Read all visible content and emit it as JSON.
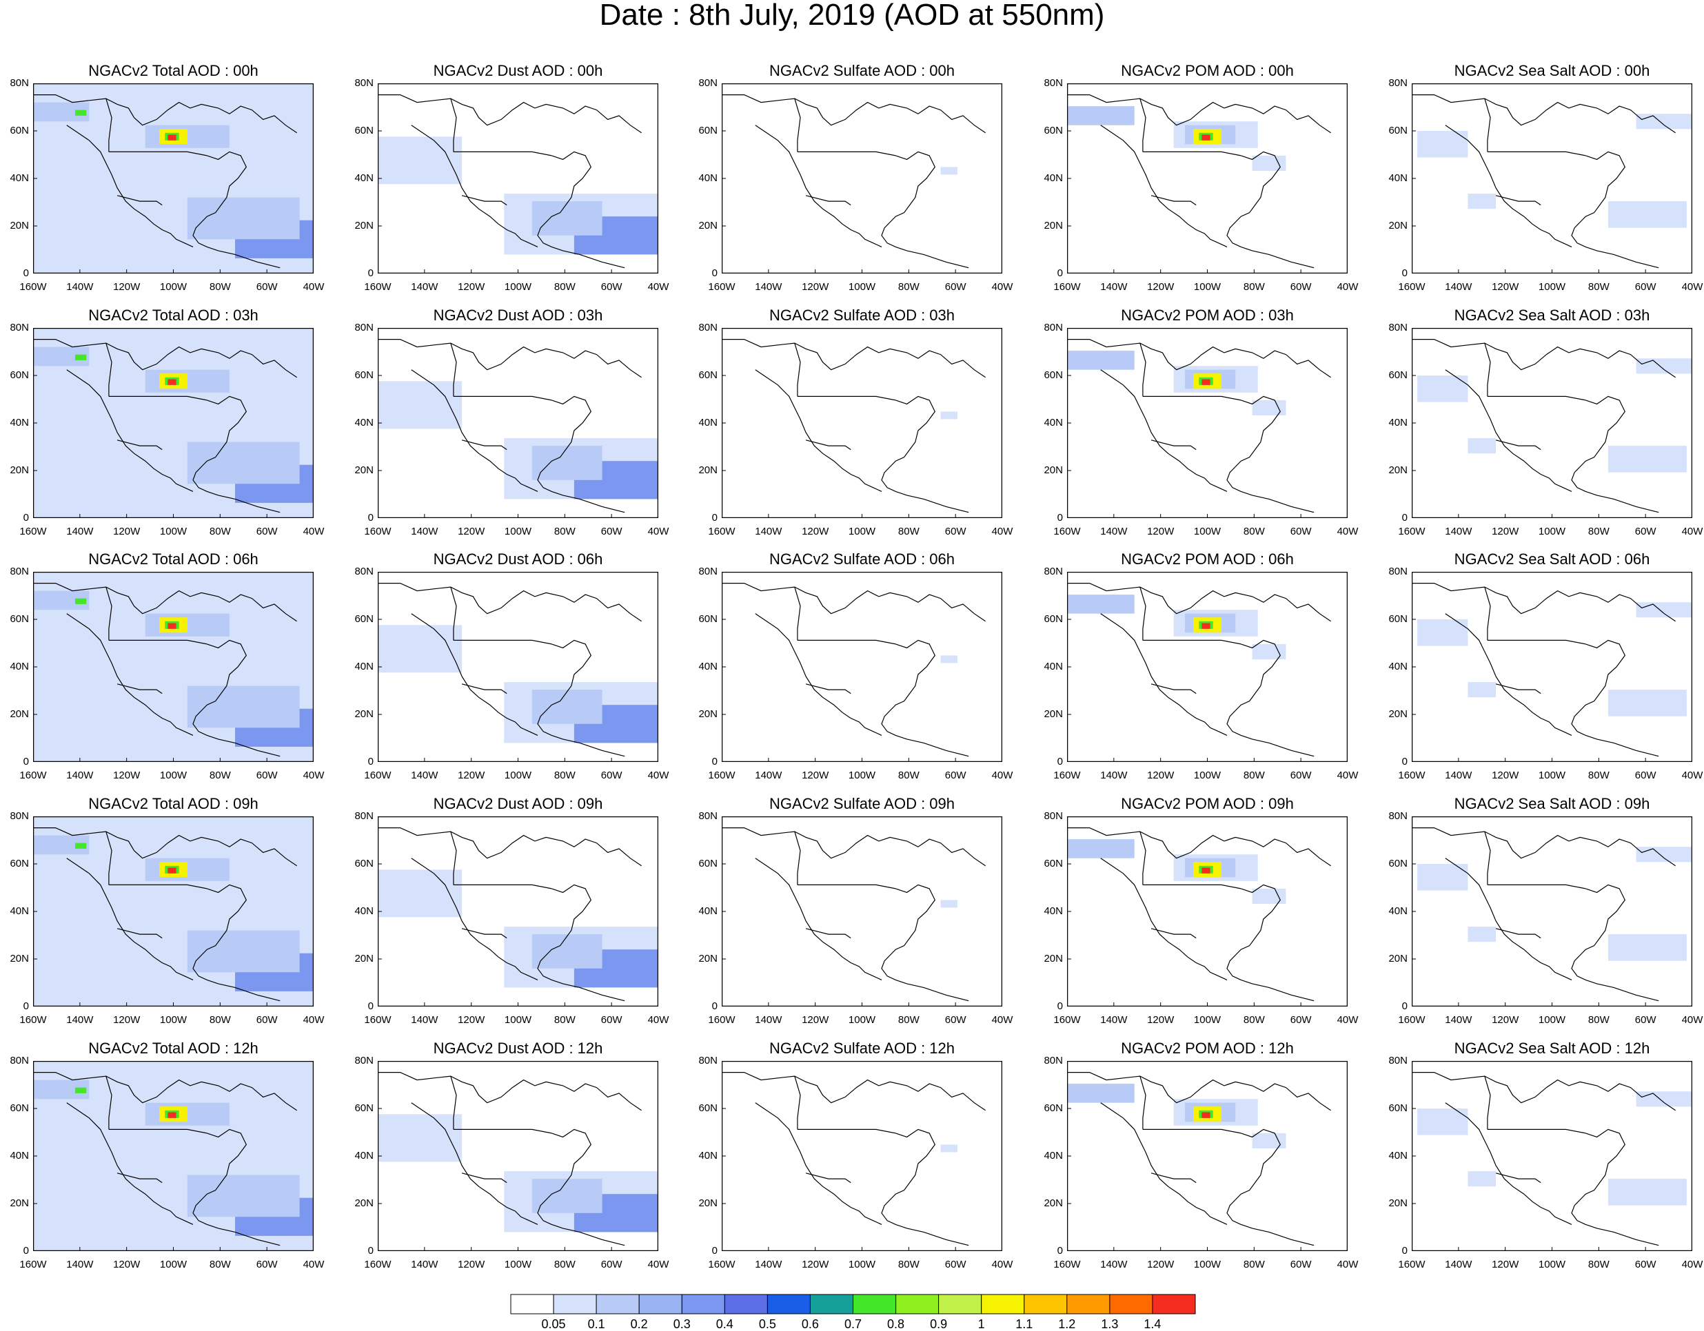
{
  "title": "Date : 8th July, 2019 (AOD at 550nm)",
  "lat_labels": [
    "80N",
    "60N",
    "40N",
    "20N",
    "0"
  ],
  "lon_labels": [
    "160W",
    "140W",
    "120W",
    "100W",
    "80W",
    "60W",
    "40W"
  ],
  "rows": [
    {
      "hour": "00h",
      "titles": [
        "NGACv2 Total AOD : 00h",
        "NGACv2 Dust AOD : 00h",
        "NGACv2 Sulfate AOD : 00h",
        "NGACv2 POM AOD : 00h",
        "NGACv2 Sea Salt AOD : 00h"
      ]
    },
    {
      "hour": "03h",
      "titles": [
        "NGACv2 Total AOD : 03h",
        "NGACv2 Dust AOD : 03h",
        "NGACv2 Sulfate AOD : 03h",
        "NGACv2 POM AOD : 03h",
        "NGACv2 Sea Salt AOD : 03h"
      ]
    },
    {
      "hour": "06h",
      "titles": [
        "NGACv2 Total AOD : 06h",
        "NGACv2 Dust AOD : 06h",
        "NGACv2 Sulfate AOD : 06h",
        "NGACv2 POM AOD : 06h",
        "NGACv2 Sea Salt AOD : 06h"
      ]
    },
    {
      "hour": "09h",
      "titles": [
        "NGACv2 Total AOD : 09h",
        "NGACv2 Dust AOD : 09h",
        "NGACv2 Sulfate AOD : 09h",
        "NGACv2 POM AOD : 09h",
        "NGACv2 Sea Salt  AOD : 09h"
      ]
    },
    {
      "hour": "12h",
      "titles": [
        "NGACv2 Total AOD  : 12h",
        "NGACv2 Dust AOD : 12h",
        "NGACv2 Sulfate AOD : 12h",
        "NGACv2 POM  AOD : 12h",
        "NGACv2 Sea Salt  AOD : 12h"
      ]
    }
  ],
  "colorbar": {
    "labels": [
      "0.05",
      "0.1",
      "0.2",
      "0.3",
      "0.4",
      "0.5",
      "0.6",
      "0.7",
      "0.8",
      "0.9",
      "1",
      "1.1",
      "1.2",
      "1.3",
      "1.4"
    ],
    "colors": [
      "#ffffff",
      "#d6e2fb",
      "#b8cbf7",
      "#9ab4f3",
      "#7c97ef",
      "#5c6fe6",
      "#1a5ee8",
      "#16a09a",
      "#43e628",
      "#8ef01e",
      "#c2f24a",
      "#f7f200",
      "#ffc400",
      "#ff9a00",
      "#ff6a00",
      "#f52d1e"
    ]
  },
  "map_colors": {
    "light": "#d6e2fb",
    "medium": "#b8cbf7",
    "dark": "#7c97ef",
    "hot1": "#f7f200",
    "hot2": "#43e628",
    "hot3": "#f52d1e",
    "coast": "#000000"
  }
}
